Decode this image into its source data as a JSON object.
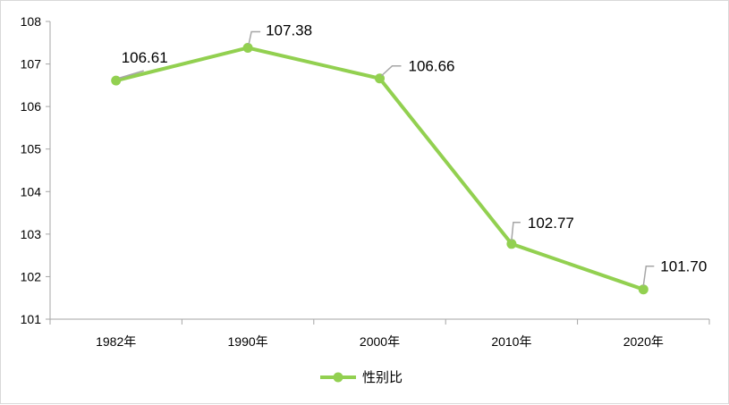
{
  "chart_data": {
    "type": "line",
    "categories": [
      "1982年",
      "1990年",
      "2000年",
      "2010年",
      "2020年"
    ],
    "series": [
      {
        "name": "性别比",
        "values": [
          106.61,
          107.38,
          106.66,
          102.77,
          101.7
        ],
        "color": "#92D050"
      }
    ],
    "data_labels": [
      "106.61",
      "107.38",
      "106.66",
      "102.77",
      "101.70"
    ],
    "ylim": [
      101,
      108
    ],
    "yticks": [
      101,
      102,
      103,
      104,
      105,
      106,
      107,
      108
    ],
    "grid": false,
    "legend": "bottom",
    "axis_color": "#a6a6a6",
    "leader_color": "#a6a6a6"
  }
}
